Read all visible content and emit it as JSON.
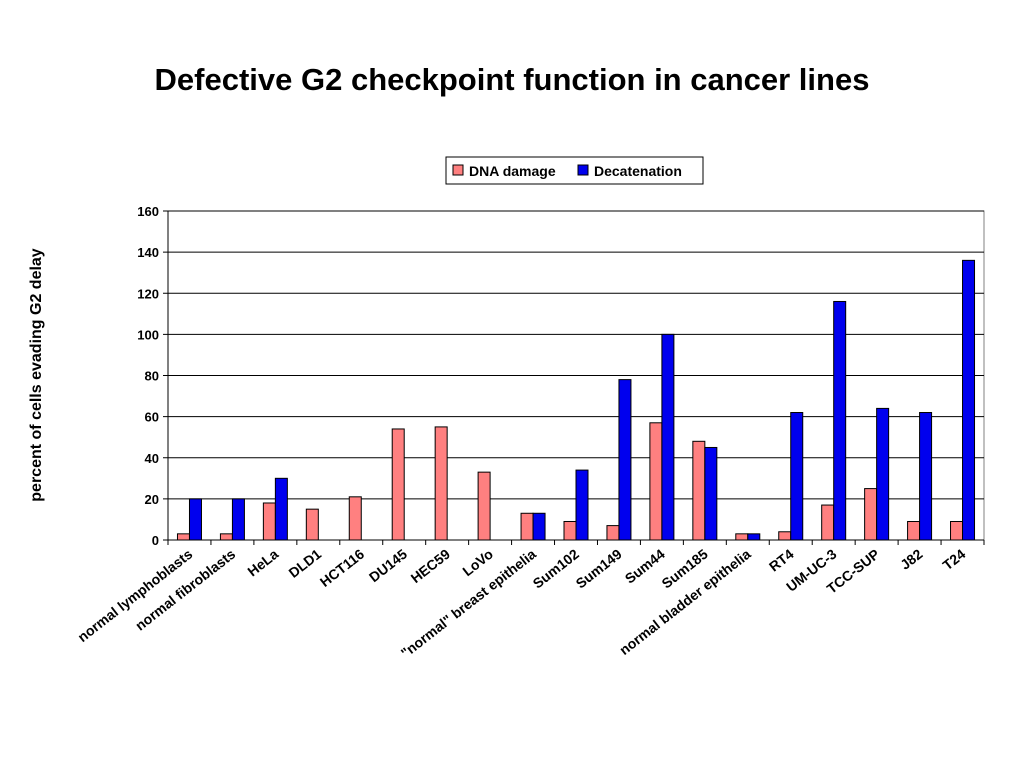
{
  "title": "Defective G2 checkpoint function in cancer lines",
  "chart_data": {
    "type": "bar",
    "title": "Defective G2 checkpoint function in cancer lines",
    "xlabel": "",
    "ylabel": "percent of cells evading G2 delay",
    "ylim": [
      0,
      160
    ],
    "yticks": [
      0,
      20,
      40,
      60,
      80,
      100,
      120,
      140,
      160
    ],
    "grid": true,
    "legend": "top-right",
    "categories": [
      "normal lymphoblasts",
      "normal fibroblasts",
      "HeLa",
      "DLD1",
      "HCT116",
      "DU145",
      "HEC59",
      "LoVo",
      "\"normal\" breast epithelia",
      "Sum102",
      "Sum149",
      "Sum44",
      "Sum185",
      "normal bladder epithelia",
      "RT4",
      "UM-UC-3",
      "TCC-SUP",
      "J82",
      "T24"
    ],
    "series": [
      {
        "name": "DNA damage",
        "color": "#ff8080",
        "values": [
          3,
          3,
          18,
          15,
          21,
          54,
          55,
          33,
          13,
          9,
          7,
          57,
          48,
          3,
          4,
          17,
          25,
          9,
          9
        ]
      },
      {
        "name": "Decatenation",
        "color": "#0000ee",
        "values": [
          20,
          20,
          30,
          null,
          null,
          null,
          null,
          null,
          13,
          34,
          78,
          100,
          45,
          3,
          62,
          116,
          64,
          62,
          136
        ]
      }
    ]
  }
}
